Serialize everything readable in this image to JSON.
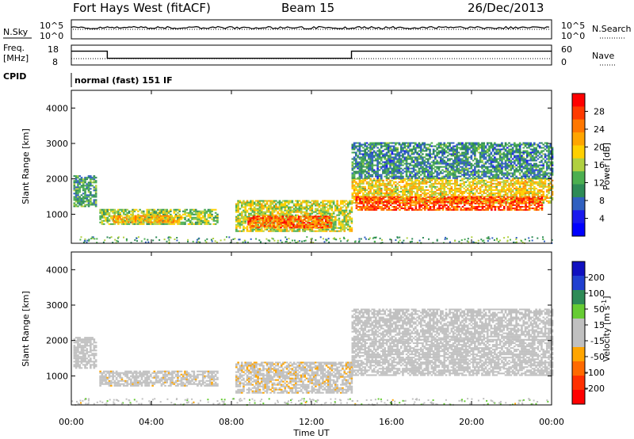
{
  "header": {
    "station": "Fort Hays West (fitACF)",
    "beam": "Beam 15",
    "date": "26/Dec/2013"
  },
  "top_panel": {
    "left_label": "N.Sky",
    "right_label": "N.Search",
    "left_ticks": [
      "10^5",
      "10^0"
    ],
    "right_ticks": [
      "10^5",
      "10^0"
    ]
  },
  "freq_panel": {
    "left_label_line1": "Freq.",
    "left_label_line2": "[MHz]",
    "right_label": "Nave",
    "left_ticks": [
      "18",
      "8"
    ],
    "right_ticks": [
      "60",
      "0"
    ]
  },
  "cpid": {
    "label": "CPID",
    "mode": "normal (fast) 151 IF"
  },
  "colorbars": {
    "power": {
      "label": "Power [dB]",
      "ticks": [
        "28",
        "24",
        "20",
        "16",
        "12",
        "8",
        "4"
      ],
      "colors": [
        "#ff0000",
        "#ff3a00",
        "#ff7700",
        "#ffa500",
        "#ffd000",
        "#b0d040",
        "#4caf50",
        "#2e8b57",
        "#3060c0",
        "#1a1aee",
        "#0000ff"
      ]
    },
    "velocity": {
      "label": "Velocity [m s",
      "label_sup": "-1",
      "label_end": "]",
      "ticks": [
        "200",
        "100",
        "50",
        "15",
        "-15",
        "-50",
        "-100",
        "-200"
      ],
      "colors": [
        "#1010c0",
        "#2040d0",
        "#2e8b57",
        "#66cc33",
        "#c0c0c0",
        "#c0c0c0",
        "#ffa500",
        "#ff6a00",
        "#ff3000",
        "#ff0000"
      ]
    }
  },
  "axes": {
    "ylabel": "Slant Range [km]",
    "xlabel": "Time UT",
    "yticks": [
      "4000",
      "3000",
      "2000",
      "1000"
    ],
    "xticks": [
      "00:00",
      "04:00",
      "08:00",
      "12:00",
      "16:00",
      "20:00",
      "00:00"
    ]
  },
  "chart_data": [
    {
      "type": "heatmap",
      "panel": "power",
      "x_unit": "hours UT",
      "y_unit": "km",
      "xlim": [
        0,
        24
      ],
      "ylim": [
        180,
        4500
      ],
      "colorbar_range": [
        0,
        30
      ],
      "regions": [
        {
          "t0": 0.1,
          "t1": 1.2,
          "r0": 1200,
          "r1": 2100,
          "level": 10
        },
        {
          "t0": 1.4,
          "t1": 7.3,
          "r0": 700,
          "r1": 1150,
          "level": 14
        },
        {
          "t0": 2.0,
          "t1": 5.5,
          "r0": 750,
          "r1": 950,
          "level": 20
        },
        {
          "t0": 8.2,
          "t1": 14.0,
          "r0": 500,
          "r1": 1400,
          "level": 16
        },
        {
          "t0": 8.8,
          "t1": 13.0,
          "r0": 600,
          "r1": 950,
          "level": 25
        },
        {
          "t0": 14.0,
          "t1": 24.0,
          "r0": 1300,
          "r1": 2000,
          "level": 18
        },
        {
          "t0": 14.2,
          "t1": 23.5,
          "r0": 1100,
          "r1": 1500,
          "level": 26
        },
        {
          "t0": 14.0,
          "t1": 24.0,
          "r0": 2000,
          "r1": 3000,
          "level": 9
        }
      ]
    },
    {
      "type": "heatmap",
      "panel": "velocity",
      "x_unit": "hours UT",
      "y_unit": "km",
      "xlim": [
        0,
        24
      ],
      "ylim": [
        180,
        4500
      ],
      "colorbar_range": [
        -250,
        250
      ],
      "regions": [
        {
          "t0": 0.1,
          "t1": 1.2,
          "r0": 1200,
          "r1": 2100,
          "level": 0
        },
        {
          "t0": 1.4,
          "t1": 7.3,
          "r0": 700,
          "r1": 1150,
          "level": -30
        },
        {
          "t0": 8.2,
          "t1": 14.0,
          "r0": 500,
          "r1": 1400,
          "level": -35
        },
        {
          "t0": 14.0,
          "t1": 24.0,
          "r0": 1000,
          "r1": 2000,
          "level": 0
        },
        {
          "t0": 14.0,
          "t1": 24.0,
          "r0": 2000,
          "r1": 2900,
          "level": 5
        }
      ]
    },
    {
      "type": "line",
      "panel": "freq",
      "series": [
        {
          "x": [
            0,
            1.8,
            1.8,
            14.0,
            14.0,
            24
          ],
          "y": [
            16,
            16,
            11,
            11,
            16,
            16
          ]
        }
      ]
    }
  ]
}
